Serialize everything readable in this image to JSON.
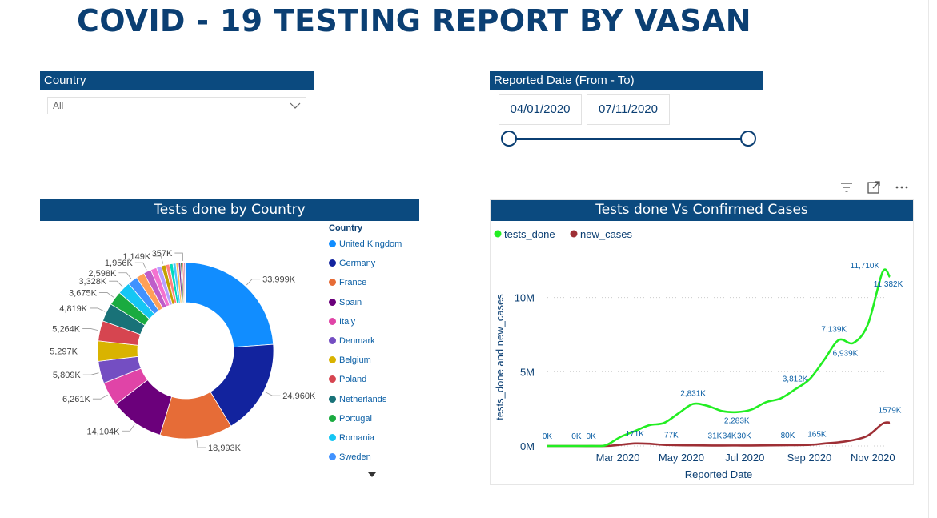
{
  "title": "COVID - 19 TESTING REPORT BY VASAN",
  "country_slicer": {
    "header": "Country",
    "selected": "All"
  },
  "date_slicer": {
    "header": "Reported Date (From - To)",
    "from": "04/01/2020",
    "to": "07/11/2020"
  },
  "visual_icons": [
    "filter-icon",
    "focus-mode-icon",
    "more-options-icon"
  ],
  "colors": {
    "header_bg": "#0b4a7f",
    "title": "#0b3f73",
    "tests_done": "#22ee22",
    "new_cases": "#9e2f35"
  },
  "chart_data": [
    {
      "type": "pie",
      "title": "Tests done by Country",
      "legend_title": "Country",
      "legend_position": "right",
      "legend": [
        "United Kingdom",
        "Germany",
        "France",
        "Spain",
        "Italy",
        "Denmark",
        "Belgium",
        "Poland",
        "Netherlands",
        "Portugal",
        "Romania",
        "Sweden"
      ],
      "slices": [
        {
          "value": 33999,
          "label": "33,999K",
          "color": "#118dff"
        },
        {
          "value": 24960,
          "label": "24,960K",
          "color": "#12239e"
        },
        {
          "value": 18993,
          "label": "18,993K",
          "color": "#e66c37"
        },
        {
          "value": 14104,
          "label": "14,104K",
          "color": "#6b007b"
        },
        {
          "value": 6261,
          "label": "6,261K",
          "color": "#e044a7"
        },
        {
          "value": 5809,
          "label": "5,809K",
          "color": "#744ec2"
        },
        {
          "value": 5297,
          "label": "5,297K",
          "color": "#d9b300"
        },
        {
          "value": 5264,
          "label": "5,264K",
          "color": "#d64550"
        },
        {
          "value": 4819,
          "label": "4,819K",
          "color": "#197278"
        },
        {
          "value": 3675,
          "label": "3,675K",
          "color": "#1aab40"
        },
        {
          "value": 3328,
          "label": "3,328K",
          "color": "#15c6f4"
        },
        {
          "value": 2598,
          "label": "2,598K",
          "color": "#4092ff"
        },
        {
          "value": 2200,
          "label": "",
          "color": "#ffa058"
        },
        {
          "value": 1956,
          "label": "1,956K",
          "color": "#be5dc9"
        },
        {
          "value": 1600,
          "label": "",
          "color": "#f472d0"
        },
        {
          "value": 1300,
          "label": "",
          "color": "#b5a1ff"
        },
        {
          "value": 1149,
          "label": "1,149K",
          "color": "#c4a200"
        },
        {
          "value": 1000,
          "label": "",
          "color": "#ff8080"
        },
        {
          "value": 900,
          "label": "",
          "color": "#00dbbc"
        },
        {
          "value": 800,
          "label": "",
          "color": "#48c5ff"
        },
        {
          "value": 650,
          "label": "",
          "color": "#ffbc56"
        },
        {
          "value": 550,
          "label": "",
          "color": "#7f3f98"
        },
        {
          "value": 450,
          "label": "",
          "color": "#2c7f2c"
        },
        {
          "value": 357,
          "label": "357K",
          "color": "#e44c4c"
        },
        {
          "value": 300,
          "label": "",
          "color": "#9c2c6b"
        },
        {
          "value": 200,
          "label": "",
          "color": "#3d5fd7"
        }
      ]
    },
    {
      "type": "line",
      "title": "Tests done Vs Confirmed Cases",
      "xlabel": "Reported Date",
      "ylabel": "tests_done and new_cases",
      "legend_position": "top-left",
      "x_ticks": [
        "Mar 2020",
        "May 2020",
        "Jul 2020",
        "Sep 2020",
        "Nov 2020"
      ],
      "y_ticks": [
        "0M",
        "5M",
        "10M"
      ],
      "ylim": [
        0,
        13000
      ],
      "series": [
        {
          "name": "tests_done",
          "color": "#22ee22",
          "points": [
            [
              "2020-01-01",
              0
            ],
            [
              "2020-01-15",
              0
            ],
            [
              "2020-01-29",
              0
            ],
            [
              "2020-02-12",
              5
            ],
            [
              "2020-02-26",
              50
            ],
            [
              "2020-03-11",
              600
            ],
            [
              "2020-03-25",
              1000
            ],
            [
              "2020-04-08",
              1400
            ],
            [
              "2020-04-22",
              1550
            ],
            [
              "2020-05-06",
              2200
            ],
            [
              "2020-05-20",
              2831
            ],
            [
              "2020-06-03",
              2700
            ],
            [
              "2020-06-17",
              2350
            ],
            [
              "2020-07-01",
              2283
            ],
            [
              "2020-07-15",
              2450
            ],
            [
              "2020-07-29",
              2950
            ],
            [
              "2020-08-12",
              3200
            ],
            [
              "2020-08-26",
              3812
            ],
            [
              "2020-09-09",
              4500
            ],
            [
              "2020-09-23",
              5800
            ],
            [
              "2020-10-07",
              7139
            ],
            [
              "2020-10-21",
              6939
            ],
            [
              "2020-11-04",
              8200
            ],
            [
              "2020-11-18",
              11710
            ],
            [
              "2020-11-25",
              11382
            ]
          ],
          "labels": [
            [
              "2020-05-20",
              "2,831K"
            ],
            [
              "2020-07-01",
              "2,283K"
            ],
            [
              "2020-08-26",
              "3,812K"
            ],
            [
              "2020-10-07",
              "7,139K"
            ],
            [
              "2020-10-21",
              "6,939K"
            ],
            [
              "2020-11-18",
              "11,710K"
            ],
            [
              "2020-11-25",
              "11,382K"
            ]
          ]
        },
        {
          "name": "new_cases",
          "color": "#9e2f35",
          "points": [
            [
              "2020-01-01",
              0
            ],
            [
              "2020-01-29",
              0
            ],
            [
              "2020-02-26",
              0
            ],
            [
              "2020-03-11",
              80
            ],
            [
              "2020-03-25",
              171
            ],
            [
              "2020-04-08",
              150
            ],
            [
              "2020-04-22",
              77
            ],
            [
              "2020-05-20",
              40
            ],
            [
              "2020-06-17",
              31
            ],
            [
              "2020-07-01",
              34
            ],
            [
              "2020-07-15",
              30
            ],
            [
              "2020-08-12",
              50
            ],
            [
              "2020-09-09",
              80
            ],
            [
              "2020-09-23",
              165
            ],
            [
              "2020-10-07",
              250
            ],
            [
              "2020-10-21",
              400
            ],
            [
              "2020-11-04",
              700
            ],
            [
              "2020-11-18",
              1500
            ],
            [
              "2020-11-25",
              1579
            ]
          ],
          "labels": [
            [
              "2020-01-01",
              "0K"
            ],
            [
              "2020-01-29",
              "0K"
            ],
            [
              "2020-02-12",
              "0K"
            ],
            [
              "2020-03-25",
              "171K"
            ],
            [
              "2020-04-29",
              "77K"
            ],
            [
              "2020-06-10",
              "31K"
            ],
            [
              "2020-06-24",
              "34K"
            ],
            [
              "2020-07-08",
              "30K"
            ],
            [
              "2020-08-19",
              "80K"
            ],
            [
              "2020-09-16",
              "165K"
            ],
            [
              "2020-11-25",
              "1579K"
            ]
          ]
        }
      ]
    }
  ]
}
